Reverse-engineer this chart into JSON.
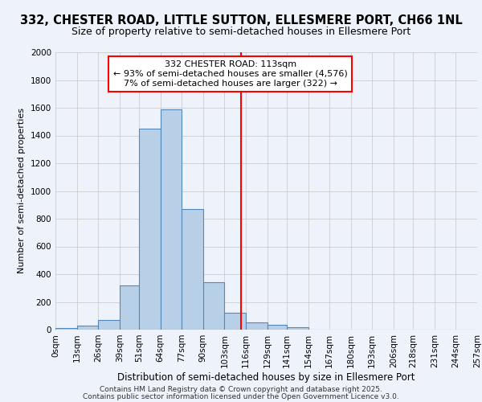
{
  "title1": "332, CHESTER ROAD, LITTLE SUTTON, ELLESMERE PORT, CH66 1NL",
  "title2": "Size of property relative to semi-detached houses in Ellesmere Port",
  "xlabel": "Distribution of semi-detached houses by size in Ellesmere Port",
  "ylabel": "Number of semi-detached properties",
  "footer1": "Contains HM Land Registry data © Crown copyright and database right 2025.",
  "footer2": "Contains public sector information licensed under the Open Government Licence v3.0.",
  "bin_edges": [
    0,
    13,
    26,
    39,
    51,
    64,
    77,
    90,
    103,
    116,
    129,
    141,
    154,
    167,
    180,
    193,
    206,
    218,
    231,
    244,
    257
  ],
  "bin_labels": [
    "0sqm",
    "13sqm",
    "26sqm",
    "39sqm",
    "51sqm",
    "64sqm",
    "77sqm",
    "90sqm",
    "103sqm",
    "116sqm",
    "129sqm",
    "141sqm",
    "154sqm",
    "167sqm",
    "180sqm",
    "193sqm",
    "206sqm",
    "218sqm",
    "231sqm",
    "244sqm",
    "257sqm"
  ],
  "bar_heights": [
    10,
    30,
    70,
    320,
    1450,
    1590,
    870,
    340,
    120,
    50,
    35,
    20,
    0,
    0,
    0,
    0,
    0,
    0,
    0,
    0
  ],
  "bar_color": "#b8cfe8",
  "bar_edge_color": "#5588bb",
  "vline_x": 113,
  "vline_color": "red",
  "annotation_title": "332 CHESTER ROAD: 113sqm",
  "annotation_line1": "← 93% of semi-detached houses are smaller (4,576)",
  "annotation_line2": "7% of semi-detached houses are larger (322) →",
  "annotation_box_color": "white",
  "annotation_box_edge": "red",
  "ylim": [
    0,
    2000
  ],
  "yticks": [
    0,
    200,
    400,
    600,
    800,
    1000,
    1200,
    1400,
    1600,
    1800,
    2000
  ],
  "bg_color": "#eef2fb",
  "grid_color": "#cccccc",
  "title1_fontsize": 10.5,
  "title2_fontsize": 9,
  "xlabel_fontsize": 8.5,
  "ylabel_fontsize": 8,
  "tick_fontsize": 7.5,
  "annotation_fontsize": 8,
  "footer_fontsize": 6.5
}
